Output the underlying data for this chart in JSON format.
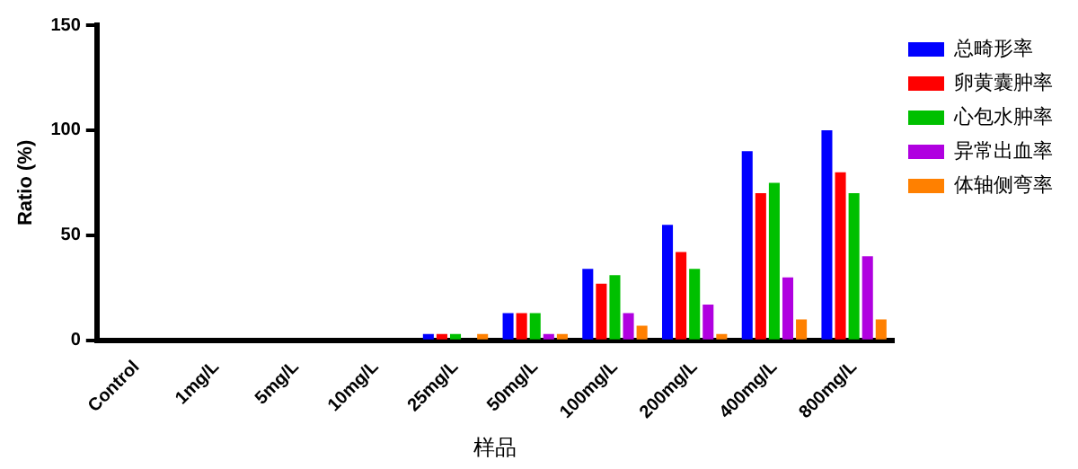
{
  "chart_data": {
    "type": "bar",
    "xlabel": "样品",
    "ylabel": "Ratio (%)",
    "categories": [
      "Control",
      "1mg/L",
      "5mg/L",
      "10mg/L",
      "25mg/L",
      "50mg/L",
      "100mg/L",
      "200mg/L",
      "400mg/L",
      "800mg/L"
    ],
    "series": [
      {
        "name": "总畸形率",
        "color": "#0000ff",
        "values": [
          0,
          0,
          0,
          0,
          3,
          13,
          34,
          55,
          90,
          100
        ]
      },
      {
        "name": "卵黄囊肿率",
        "color": "#ff0000",
        "values": [
          0,
          0,
          0,
          0,
          3,
          13,
          27,
          42,
          70,
          80
        ]
      },
      {
        "name": "心包水肿率",
        "color": "#00c000",
        "values": [
          0,
          0,
          0,
          0,
          3,
          13,
          31,
          34,
          75,
          70
        ]
      },
      {
        "name": "异常出血率",
        "color": "#b000e0",
        "values": [
          0,
          0,
          0,
          0,
          0,
          3,
          13,
          17,
          30,
          40
        ]
      },
      {
        "name": "体轴侧弯率",
        "color": "#ff8000",
        "values": [
          0,
          0,
          0,
          0,
          3,
          3,
          7,
          3,
          10,
          10
        ]
      }
    ],
    "ylim": [
      0,
      150
    ],
    "yticks": [
      0,
      50,
      100,
      150
    ],
    "grid": false,
    "legend": "top right"
  }
}
